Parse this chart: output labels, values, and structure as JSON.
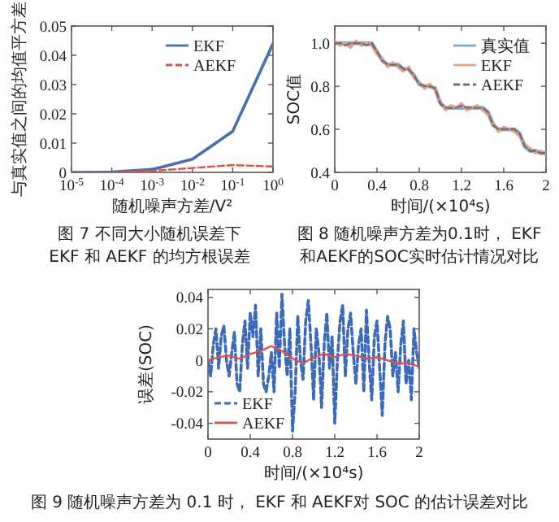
{
  "chart_data": [
    {
      "type": "line",
      "xlabel": "随机噪声方差/V²",
      "ylabel": "与真实值之间的均值平方差",
      "log": "x",
      "legend": "top right",
      "x": [
        1e-05,
        0.0001,
        0.001,
        0.01,
        0.1,
        1
      ],
      "xlim": [
        1e-05,
        1
      ],
      "ylim": [
        0,
        0.05
      ],
      "xticks": [
        {
          "value": 1e-05,
          "label": "10$^{-5}$"
        },
        {
          "value": 0.0001,
          "label": "10$^{-4}$"
        },
        {
          "value": 0.001,
          "label": "10$^{-3}$"
        },
        {
          "value": 0.01,
          "label": "10$^{-2}$"
        },
        {
          "value": 0.1,
          "label": "10$^{-1}$"
        },
        {
          "value": 1,
          "label": "10$^{0}$"
        }
      ],
      "yticks": [
        0,
        0.01,
        0.02,
        0.03,
        0.04,
        0.05
      ],
      "series": [
        {
          "name": "EKF",
          "color": "#4a6fb0",
          "values": [
            0,
            0.0001,
            0.001,
            0.0045,
            0.014,
            0.044
          ]
        },
        {
          "name": "AEKF",
          "color": "#e05040",
          "line_style": "dashed",
          "values": [
            0,
            0,
            0.0005,
            0.0015,
            0.0025,
            0.002
          ]
        }
      ],
      "annotations": [
        "图 7 不同大小随机误差下",
        "EKF 和 AEKF 的均方根误差"
      ]
    },
    {
      "type": "line",
      "xlabel": "时间/(×10⁴s)",
      "ylabel": "SOC值",
      "legend": "top right",
      "x": [
        0,
        0.05,
        0.1,
        0.15,
        0.2,
        0.25,
        0.3,
        0.35,
        0.4,
        0.45,
        0.5,
        0.55,
        0.6,
        0.65,
        0.7,
        0.75,
        0.8,
        0.85,
        0.9,
        0.95,
        1.0,
        1.05,
        1.1,
        1.15,
        1.2,
        1.25,
        1.3,
        1.35,
        1.4,
        1.45,
        1.5,
        1.55,
        1.6,
        1.65,
        1.7,
        1.75,
        1.8,
        1.85,
        1.9,
        1.95,
        2.0
      ],
      "xlim": [
        0,
        2
      ],
      "ylim": [
        0.4,
        1.08
      ],
      "xticks": [
        0,
        0.4,
        0.8,
        1.2,
        1.6,
        2
      ],
      "yticks": [
        0.4,
        0.6,
        0.8,
        {
          "value": 1,
          "label": "1.0"
        }
      ],
      "series": [
        {
          "name": "真实值",
          "color": "#7aaad8",
          "values": [
            1.0,
            1.0,
            1.0,
            1.0,
            1.0,
            1.0,
            1.0,
            1.0,
            0.96,
            0.92,
            0.9,
            0.9,
            0.9,
            0.88,
            0.88,
            0.85,
            0.81,
            0.8,
            0.8,
            0.79,
            0.72,
            0.7,
            0.7,
            0.7,
            0.7,
            0.7,
            0.7,
            0.7,
            0.7,
            0.68,
            0.62,
            0.6,
            0.6,
            0.6,
            0.6,
            0.58,
            0.52,
            0.5,
            0.5,
            0.49,
            0.49
          ]
        },
        {
          "name": "EKF",
          "color": "#f0a080",
          "values": [
            1.01,
            0.99,
            1.0,
            0.98,
            1.01,
            0.99,
            1.0,
            0.99,
            0.95,
            0.93,
            0.89,
            0.91,
            0.89,
            0.87,
            0.89,
            0.84,
            0.82,
            0.79,
            0.81,
            0.78,
            0.73,
            0.69,
            0.71,
            0.7,
            0.72,
            0.69,
            0.7,
            0.71,
            0.69,
            0.67,
            0.63,
            0.59,
            0.61,
            0.6,
            0.59,
            0.57,
            0.53,
            0.51,
            0.49,
            0.5,
            0.48
          ]
        },
        {
          "name": "AEKF",
          "color": "#707070",
          "line_style": "dashed",
          "values": [
            1.0,
            1.0,
            0.99,
            1.0,
            1.0,
            1.0,
            0.99,
            1.0,
            0.96,
            0.92,
            0.9,
            0.9,
            0.9,
            0.88,
            0.88,
            0.85,
            0.81,
            0.8,
            0.8,
            0.79,
            0.72,
            0.7,
            0.7,
            0.7,
            0.71,
            0.7,
            0.7,
            0.7,
            0.7,
            0.68,
            0.62,
            0.6,
            0.6,
            0.6,
            0.6,
            0.58,
            0.52,
            0.5,
            0.5,
            0.49,
            0.49
          ]
        }
      ],
      "annotations": [
        "图 8 随机噪声方差为0.1时， EKF",
        "和AEKF的SOC实时估计情况对比"
      ]
    },
    {
      "type": "line",
      "xlabel": "时间/(×10⁴s)",
      "ylabel": "误差(SOC)",
      "legend": "bottom left",
      "xlim": [
        0,
        2
      ],
      "ylim": [
        -0.05,
        0.045
      ],
      "xticks": [
        0,
        0.4,
        0.8,
        1.2,
        1.6,
        2
      ],
      "yticks": [
        -0.04,
        -0.02,
        0,
        0.02,
        0.04
      ],
      "series": [
        {
          "name": "EKF",
          "color": "#3a6ab8",
          "line_style": "dashed",
          "x": [
            0,
            0.025,
            0.05,
            0.075,
            0.1,
            0.125,
            0.15,
            0.175,
            0.2,
            0.225,
            0.25,
            0.275,
            0.3,
            0.325,
            0.35,
            0.375,
            0.4,
            0.425,
            0.45,
            0.475,
            0.5,
            0.525,
            0.55,
            0.575,
            0.6,
            0.625,
            0.65,
            0.675,
            0.7,
            0.725,
            0.75,
            0.775,
            0.8,
            0.825,
            0.85,
            0.875,
            0.9,
            0.925,
            0.95,
            0.975,
            1.0,
            1.025,
            1.05,
            1.075,
            1.1,
            1.125,
            1.15,
            1.175,
            1.2,
            1.225,
            1.25,
            1.275,
            1.3,
            1.325,
            1.35,
            1.375,
            1.4,
            1.425,
            1.45,
            1.475,
            1.5,
            1.525,
            1.55,
            1.575,
            1.6,
            1.625,
            1.65,
            1.675,
            1.7,
            1.725,
            1.75,
            1.775,
            1.8,
            1.825,
            1.85,
            1.875,
            1.9,
            1.925,
            1.95,
            1.975,
            2.0
          ],
          "values": [
            0.0,
            -0.01,
            0.01,
            0.02,
            -0.005,
            0.015,
            0.022,
            0.0,
            -0.01,
            0.005,
            0.018,
            -0.015,
            -0.02,
            0.01,
            0.025,
            -0.005,
            0.03,
            0.015,
            0.035,
            -0.01,
            0.02,
            -0.015,
            -0.02,
            -0.01,
            0.005,
            -0.02,
            0.03,
            -0.005,
            0.042,
            0.01,
            -0.01,
            0.02,
            -0.045,
            -0.02,
            0.028,
            0.0,
            -0.012,
            0.025,
            0.038,
            0.01,
            -0.025,
            0.02,
            0.005,
            -0.03,
            0.01,
            0.03,
            -0.005,
            0.015,
            -0.04,
            0.0,
            0.025,
            0.035,
            -0.01,
            0.02,
            0.03,
            0.005,
            -0.015,
            0.01,
            0.02,
            -0.02,
            0.032,
            0.0,
            -0.025,
            0.015,
            0.025,
            -0.005,
            -0.035,
            0.01,
            0.028,
            0.02,
            -0.01,
            0.005,
            -0.02,
            0.01,
            0.025,
            -0.015,
            0.0,
            -0.025,
            0.02,
            0.005,
            -0.005
          ]
        },
        {
          "name": "AEKF",
          "color": "#e05050",
          "x": [
            0,
            0.1,
            0.2,
            0.3,
            0.4,
            0.5,
            0.6,
            0.7,
            0.8,
            0.9,
            1.0,
            1.1,
            1.2,
            1.3,
            1.4,
            1.5,
            1.6,
            1.7,
            1.8,
            1.9,
            2.0
          ],
          "values": [
            0,
            0.002,
            0.003,
            0.001,
            0.004,
            0.006,
            0.009,
            0.006,
            0.001,
            -0.002,
            0.002,
            0.004,
            0.002,
            0.004,
            0.003,
            0.001,
            0.002,
            0.0,
            -0.002,
            -0.002,
            -0.004
          ]
        }
      ],
      "annotations": [
        "图 9 随机噪声方差为 0.1 时， EKF 和 AEKF对 SOC 的估计误差对比"
      ]
    }
  ]
}
